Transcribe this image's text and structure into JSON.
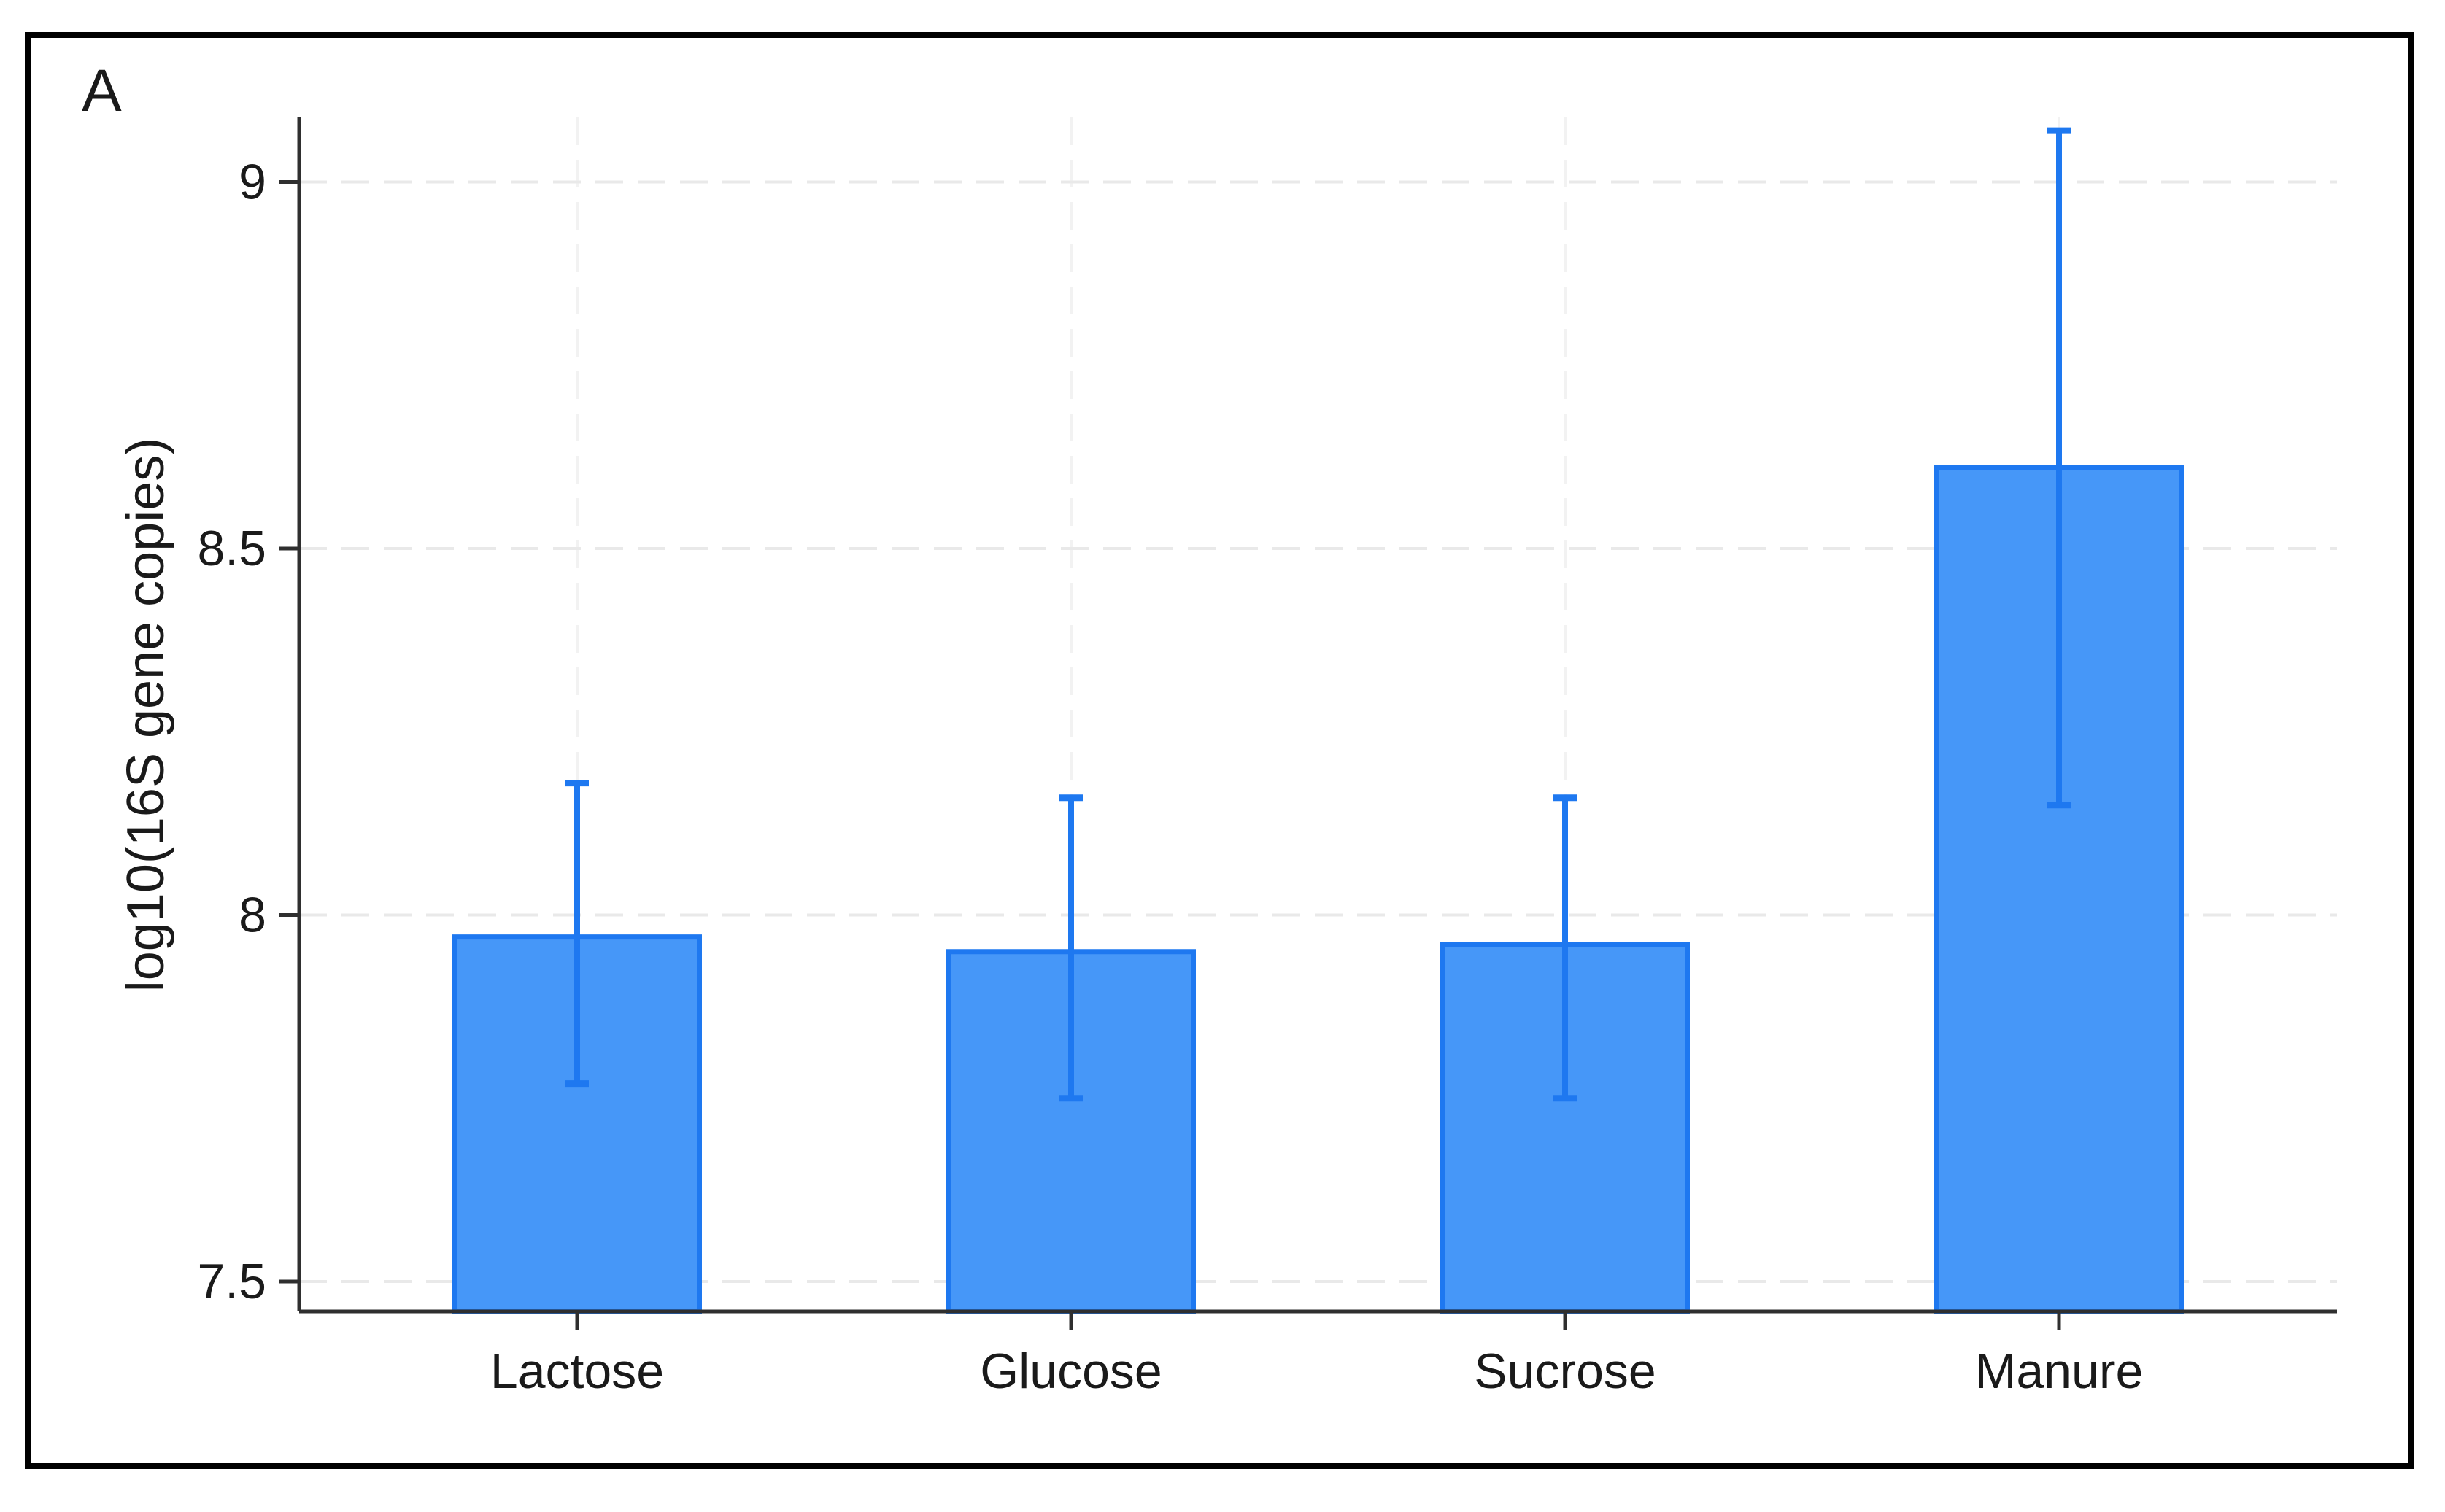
{
  "panel_label": "A",
  "colors": {
    "bar_fill": "#4697F8",
    "bar_stroke": "#1E78F0",
    "error_bar": "#1E78F0",
    "axis": "#2f2f2f",
    "gridline_horizontal": "#e9e9e9",
    "gridline_vertical": "#f2f2f2",
    "frame_border": "#000000",
    "text": "#1a1a1a",
    "background": "#ffffff"
  },
  "chart_data": {
    "type": "bar",
    "title": "",
    "xlabel": "",
    "ylabel": "log10(16S gene copies)",
    "categories": [
      "Lactose",
      "Glucose",
      "Sucrose",
      "Manure"
    ],
    "values": [
      7.97,
      7.95,
      7.96,
      8.61
    ],
    "error_low": [
      7.77,
      7.75,
      7.75,
      8.15
    ],
    "error_high": [
      8.18,
      8.16,
      8.16,
      9.07
    ],
    "yticks": [
      7.5,
      8,
      8.5,
      9
    ],
    "ytick_labels": [
      "7.5",
      "8",
      "8.5",
      "9"
    ],
    "ylim": [
      7.46,
      9.09
    ],
    "grid": "horizontal dashed at each y tick, faint vertical dashed at category centers",
    "legend": "none",
    "error_bars": "vertical with caps, above and below bar top"
  }
}
